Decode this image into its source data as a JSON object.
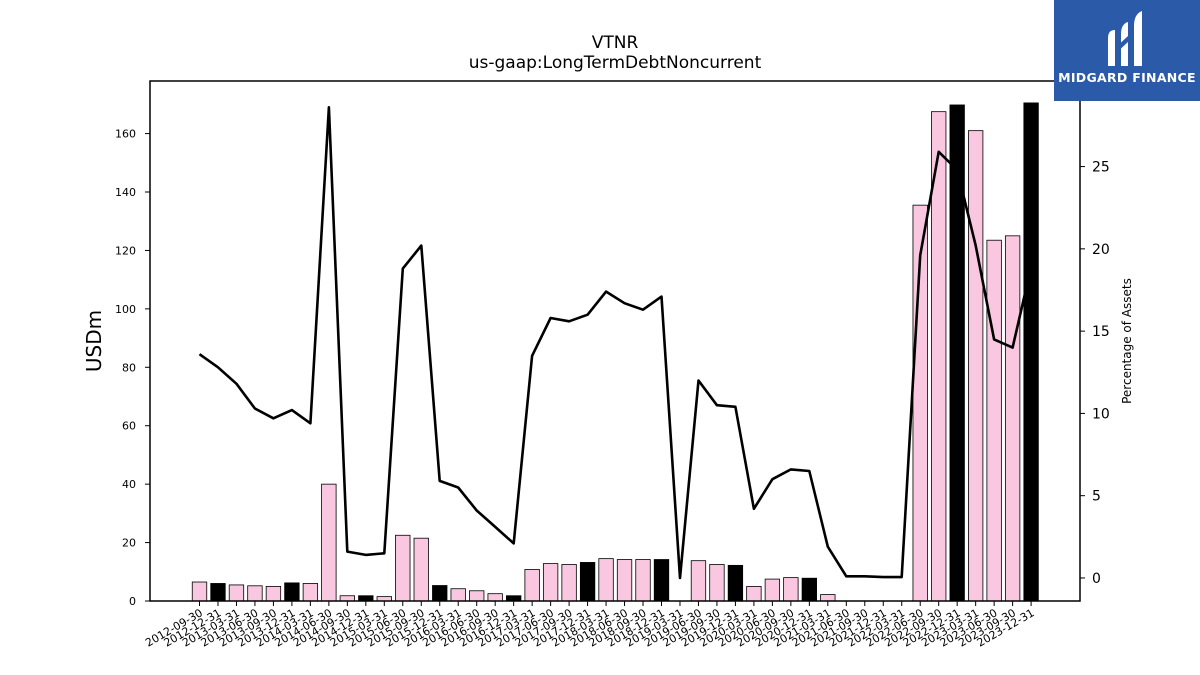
{
  "brand": {
    "name": "MIDGARD FINANCE",
    "color": "#2a5aa8"
  },
  "chart_data": {
    "type": "bar",
    "title": "VTNR",
    "subtitle": "us-gaap:LongTermDebtNoncurrent",
    "ylabel": "USDm",
    "ylabel_right": "Percentage of Assets",
    "ylim": [
      0,
      178
    ],
    "ylim_right": [
      -1.4,
      30.2
    ],
    "yticks": [
      0,
      20,
      40,
      60,
      80,
      100,
      120,
      140,
      160
    ],
    "yticks_right": [
      0,
      5,
      10,
      15,
      20,
      25
    ],
    "grid": false,
    "colors": {
      "bar_default": "#f9c8e0",
      "bar_highlight": "#000000",
      "line": "#000000"
    },
    "categories": [
      "2012-09-30",
      "2012-12-31",
      "2013-03-31",
      "2013-06-30",
      "2013-09-30",
      "2013-12-31",
      "2014-03-31",
      "2014-06-30",
      "2014-09-30",
      "2014-12-31",
      "2015-03-31",
      "2015-06-30",
      "2015-09-30",
      "2015-12-31",
      "2016-03-31",
      "2016-06-30",
      "2016-09-30",
      "2016-12-31",
      "2017-03-31",
      "2017-06-30",
      "2017-09-30",
      "2017-12-31",
      "2018-03-31",
      "2018-06-30",
      "2018-09-30",
      "2018-12-31",
      "2019-03-31",
      "2019-06-30",
      "2019-09-30",
      "2019-12-31",
      "2020-03-31",
      "2020-06-30",
      "2020-09-30",
      "2020-12-31",
      "2021-03-31",
      "2021-06-30",
      "2021-09-30",
      "2021-12-31",
      "2022-03-31",
      "2022-06-30",
      "2022-09-30",
      "2022-12-31",
      "2023-03-31",
      "2023-06-30",
      "2023-09-30",
      "2023-12-31"
    ],
    "series": [
      {
        "kind": "bar",
        "axis": "left",
        "values": [
          6.5,
          6.0,
          5.5,
          5.2,
          5.0,
          6.2,
          6.0,
          40.0,
          1.8,
          1.8,
          1.5,
          22.5,
          21.5,
          5.3,
          4.2,
          3.5,
          2.5,
          1.8,
          10.8,
          12.8,
          12.5,
          13.2,
          14.5,
          14.2,
          14.2,
          14.2,
          0,
          13.8,
          12.5,
          12.2,
          5.0,
          7.5,
          8.0,
          7.8,
          2.2,
          0,
          0,
          0,
          0,
          135.5,
          167.5,
          169.8,
          161.0,
          123.5,
          125.0,
          170.5
        ],
        "highlight": [
          false,
          true,
          false,
          false,
          false,
          true,
          false,
          false,
          false,
          true,
          false,
          false,
          false,
          true,
          false,
          false,
          false,
          true,
          false,
          false,
          false,
          true,
          false,
          false,
          false,
          true,
          false,
          false,
          false,
          true,
          false,
          false,
          false,
          true,
          false,
          false,
          false,
          true,
          false,
          false,
          false,
          true,
          false,
          false,
          false,
          true
        ]
      },
      {
        "kind": "line",
        "axis": "right",
        "values": [
          13.6,
          12.8,
          11.8,
          10.3,
          9.7,
          10.2,
          9.4,
          28.6,
          1.6,
          1.4,
          1.5,
          18.8,
          20.2,
          5.9,
          5.5,
          4.1,
          3.1,
          2.1,
          13.5,
          15.8,
          15.6,
          16.0,
          17.4,
          16.7,
          16.3,
          17.1,
          0.0,
          12.0,
          10.5,
          10.4,
          4.2,
          6.0,
          6.6,
          6.5,
          1.9,
          0.1,
          0.1,
          0.05,
          0.05,
          19.6,
          25.9,
          24.8,
          20.2,
          14.5,
          14.0,
          18.9
        ]
      }
    ]
  }
}
